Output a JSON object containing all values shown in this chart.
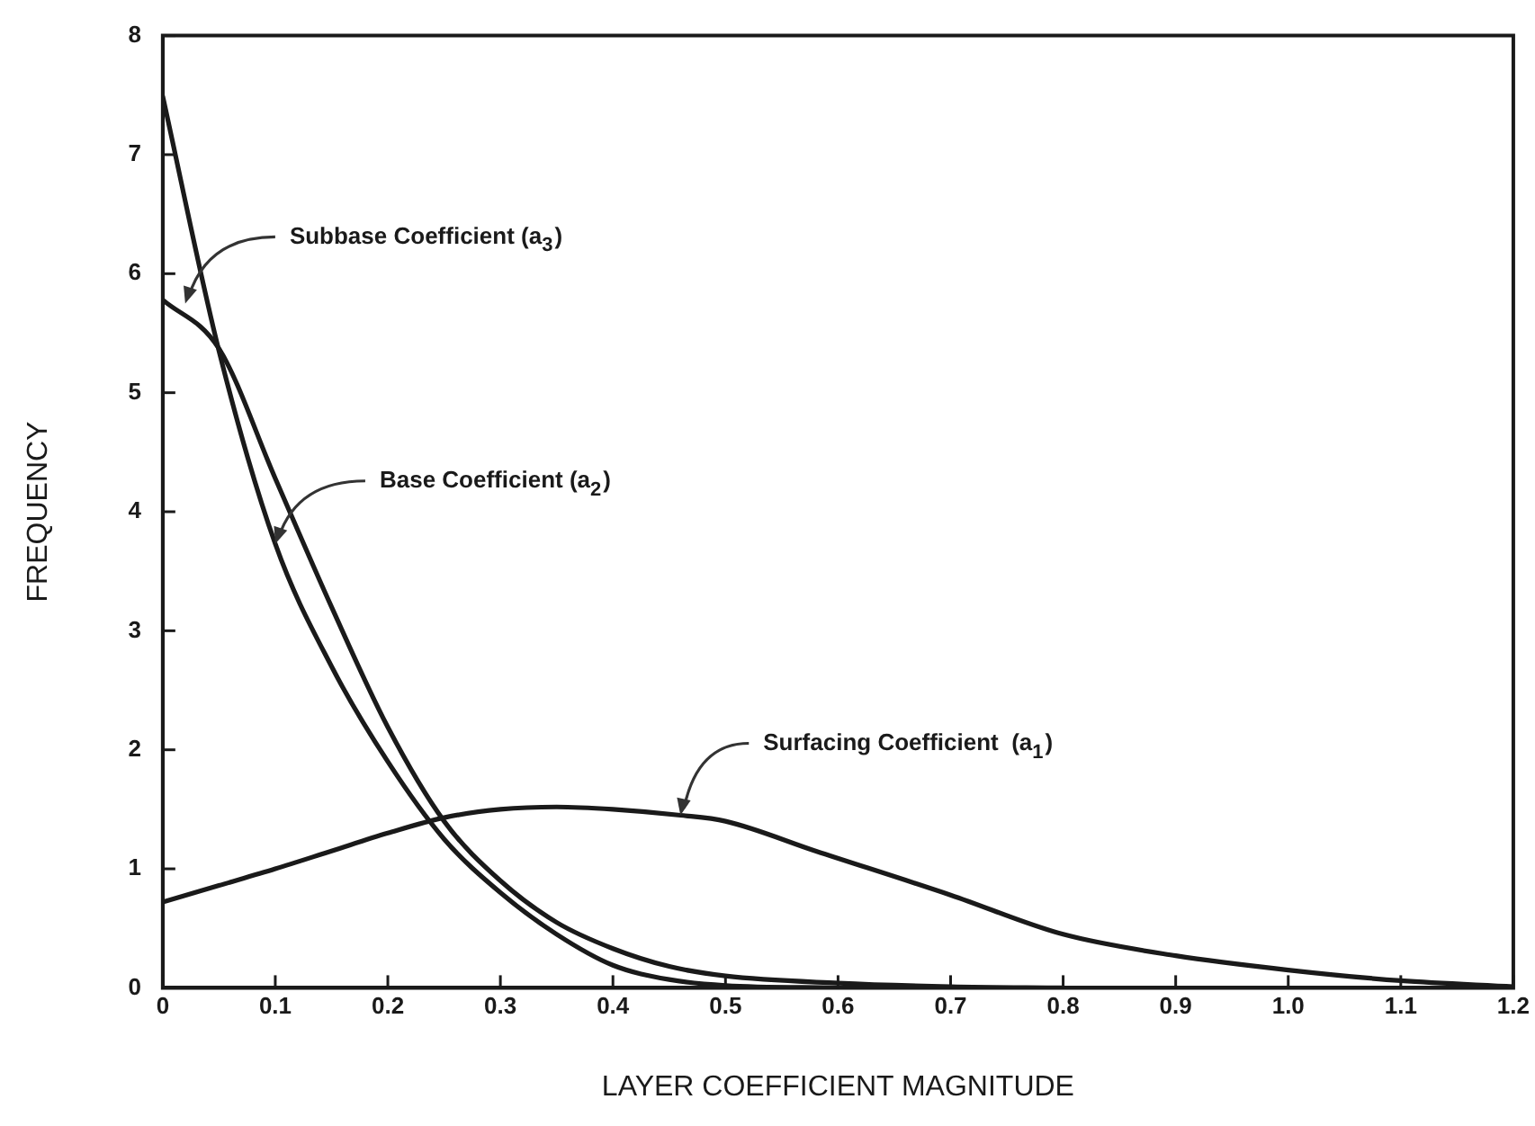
{
  "chart_data": {
    "type": "line",
    "xlabel": "LAYER COEFFICIENT MAGNITUDE",
    "ylabel": "FREQUENCY",
    "xlim": [
      0,
      1.2
    ],
    "xticks": [
      0,
      0.1,
      0.2,
      0.3,
      0.4,
      0.5,
      0.6,
      0.7,
      0.8,
      0.9,
      {
        "value": 1,
        "label": "1.0"
      },
      1.1,
      1.2
    ],
    "ylim": [
      0,
      8
    ],
    "yticks": [
      0,
      1,
      2,
      3,
      4,
      5,
      6,
      7,
      8
    ],
    "grid": false,
    "legend": false,
    "marker": "none",
    "line_style": "solid",
    "series": [
      {
        "color": "#1a1a1a",
        "x": [
          0,
          0.05,
          0.1,
          0.15,
          0.2,
          0.25,
          0.3,
          0.35,
          0.4,
          0.46,
          0.5,
          0.58,
          0.7,
          0.8,
          0.9,
          1.0,
          1.1,
          1.2
        ],
        "values": [
          0.72,
          0.86,
          1.0,
          1.15,
          1.3,
          1.43,
          1.5,
          1.52,
          1.5,
          1.45,
          1.4,
          1.15,
          0.78,
          0.45,
          0.27,
          0.15,
          0.06,
          0.01
        ]
      },
      {
        "color": "#1a1a1a",
        "x": [
          0,
          0.05,
          0.1,
          0.15,
          0.2,
          0.25,
          0.3,
          0.35,
          0.4,
          0.45,
          0.5,
          0.6
        ],
        "values": [
          7.49,
          5.35,
          3.73,
          2.7,
          1.9,
          1.25,
          0.8,
          0.45,
          0.19,
          0.07,
          0.02,
          0
        ]
      },
      {
        "color": "#1a1a1a",
        "x": [
          0,
          0.05,
          0.1,
          0.15,
          0.2,
          0.25,
          0.3,
          0.35,
          0.4,
          0.45,
          0.5,
          0.6,
          0.7,
          0.8
        ],
        "values": [
          5.78,
          5.37,
          4.28,
          3.2,
          2.19,
          1.4,
          0.9,
          0.55,
          0.33,
          0.18,
          0.1,
          0.04,
          0.01,
          0
        ]
      }
    ],
    "annotations": [
      {
        "text": "Subbase Coefficient (a$_{3}$)",
        "x": 0.02,
        "y": 5.75
      },
      {
        "text": "Base Coefficient (a$_{2}$)",
        "x": 0.1,
        "y": 3.73
      },
      {
        "text": "Surfacing Coefficient  (a$_{1}$)",
        "x": 0.46,
        "y": 1.45
      }
    ]
  }
}
